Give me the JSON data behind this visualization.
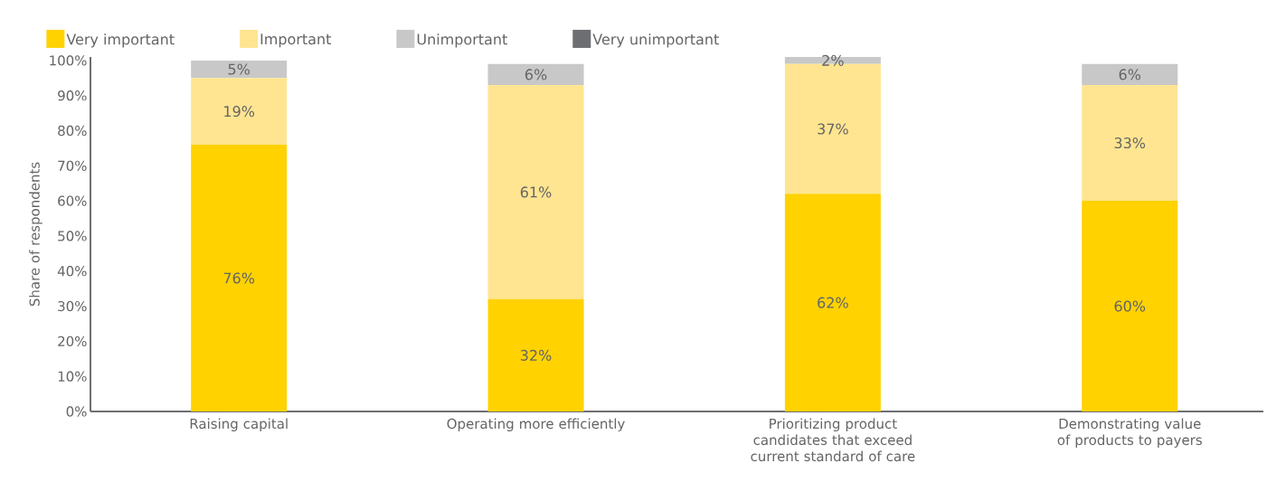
{
  "chart_data": {
    "type": "bar",
    "stacked": true,
    "ylabel": "Share of respondents",
    "categories": [
      "Raising capital",
      "Operating more efficiently",
      "Prioritizing product candidates that exceed current standard of care",
      "Demonstrating value of products to payers"
    ],
    "series": [
      {
        "name": "Very important",
        "color": "#ffd200",
        "values": [
          76,
          32,
          62,
          60
        ],
        "value_labels": [
          "76%",
          "32%",
          "62%",
          "60%"
        ]
      },
      {
        "name": "Important",
        "color": "#ffe591",
        "values": [
          19,
          61,
          37,
          33
        ],
        "value_labels": [
          "19%",
          "61%",
          "37%",
          "33%"
        ]
      },
      {
        "name": "Unimportant",
        "color": "#c8c8c8",
        "values": [
          5,
          6,
          2,
          6
        ],
        "value_labels": [
          "5%",
          "6%",
          "2%",
          "6%"
        ]
      },
      {
        "name": "Very unimportant",
        "color": "#6d6e71",
        "values": [
          null,
          null,
          null,
          null
        ]
      }
    ],
    "ylim": [
      0,
      101
    ],
    "yticks": [
      {
        "value": 0,
        "label": "0%"
      },
      {
        "value": 10,
        "label": "10%"
      },
      {
        "value": 20,
        "label": "20%"
      },
      {
        "value": 30,
        "label": "30%"
      },
      {
        "value": 40,
        "label": "40%"
      },
      {
        "value": 50,
        "label": "50%"
      },
      {
        "value": 60,
        "label": "60%"
      },
      {
        "value": 70,
        "label": "70%"
      },
      {
        "value": 80,
        "label": "80%"
      },
      {
        "value": 90,
        "label": "90%"
      },
      {
        "value": 100,
        "label": "100%"
      }
    ],
    "legend": "top left"
  }
}
